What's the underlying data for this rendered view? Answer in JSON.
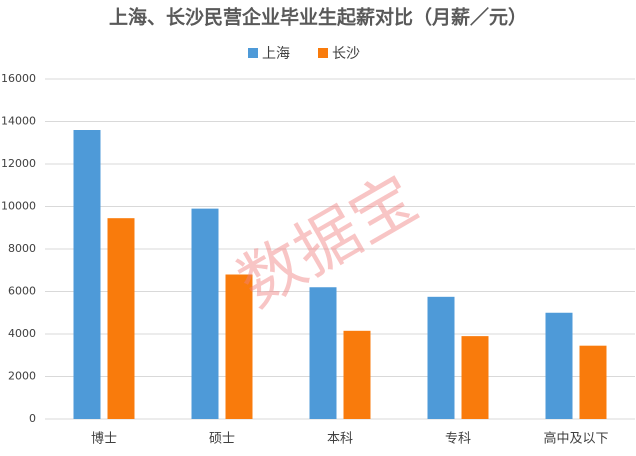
{
  "chart_data": {
    "type": "bar",
    "title": "上海、长沙民营企业毕业生起薪对比（月薪／元）",
    "watermark": "数据宝",
    "categories": [
      "博士",
      "硕士",
      "本科",
      "专科",
      "高中及以下"
    ],
    "series": [
      {
        "name": "上海",
        "color": "#4e9ad8",
        "values": [
          13600,
          9900,
          6200,
          5750,
          5000
        ]
      },
      {
        "name": "长沙",
        "color": "#f97b0c",
        "values": [
          9450,
          6800,
          4150,
          3900,
          3450
        ]
      }
    ],
    "ylim": [
      0,
      16000
    ],
    "yticks": [
      0,
      2000,
      4000,
      6000,
      8000,
      10000,
      12000,
      14000,
      16000
    ],
    "grid": true,
    "legend": "top"
  }
}
